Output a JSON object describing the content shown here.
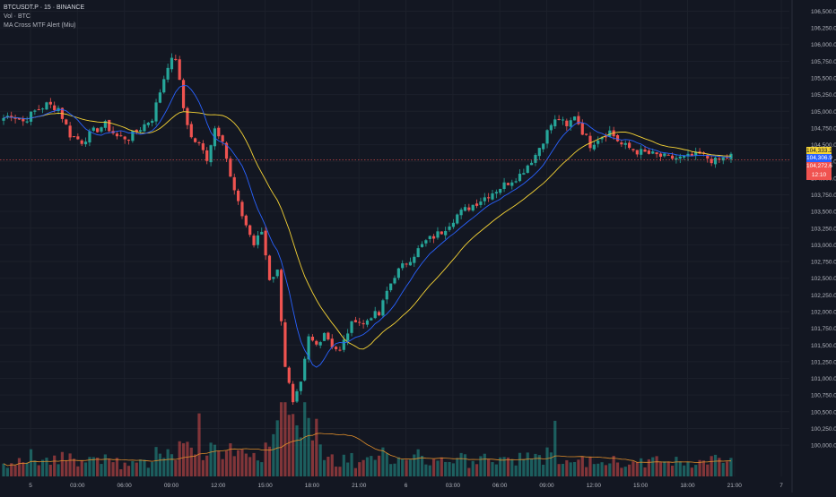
{
  "legend": {
    "symbol": "BTCUSDT.P · 15 · BINANCE",
    "volume": "Vol · BTC",
    "indicator": "MA Cross MTF Alert (Miu)"
  },
  "price_tags": [
    {
      "label": "104,333.2",
      "color": "#f5d335",
      "text_color": "#131722"
    },
    {
      "label": "104,306.9",
      "color": "#2962ff",
      "text_color": "#ffffff"
    },
    {
      "label": "104,272.6",
      "color": "#f05350",
      "text_color": "#ffffff"
    },
    {
      "label": "12:10",
      "color": "#f05350",
      "text_color": "#ffffff"
    }
  ],
  "colors": {
    "up": "#26a69a",
    "down": "#ef5350",
    "ma_fast": "#2962ff",
    "ma_slow": "#f5d335",
    "vol_ma": "#e08e2b",
    "grid": "#1c202b",
    "axis_text": "#b2b5be"
  },
  "chart_data": {
    "type": "candlestick",
    "symbol": "BTCUSDT.P",
    "interval": "15",
    "exchange": "BINANCE",
    "y_axis_ticks": [
      "106,500.0",
      "106,250.0",
      "106,000.0",
      "105,750.0",
      "105,500.0",
      "105,250.0",
      "105,000.0",
      "104,750.0",
      "104,500.0",
      "104,250.0",
      "104,000.0",
      "103,750.0",
      "103,500.0",
      "103,250.0",
      "103,000.0",
      "102,750.0",
      "102,500.0",
      "102,250.0",
      "102,000.0",
      "101,750.0",
      "101,500.0",
      "101,250.0",
      "101,000.0",
      "100,750.0",
      "100,500.0",
      "100,250.0",
      "100,000.0"
    ],
    "ylim": [
      99800,
      106600
    ],
    "x_axis_ticks": [
      "5",
      "03:00",
      "06:00",
      "09:00",
      "12:00",
      "15:00",
      "18:00",
      "21:00",
      "6",
      "03:00",
      "06:00",
      "09:00",
      "12:00",
      "15:00",
      "18:00",
      "21:00",
      "7"
    ],
    "x_tick_bars": [
      0,
      12,
      24,
      36,
      48,
      60,
      72,
      84,
      96,
      108,
      120,
      132,
      144,
      156,
      168,
      180,
      192
    ],
    "waypoints": [
      [
        0,
        104900
      ],
      [
        2,
        104950
      ],
      [
        5,
        104850
      ],
      [
        8,
        105000
      ],
      [
        11,
        105100
      ],
      [
        14,
        105050
      ],
      [
        17,
        104650
      ],
      [
        20,
        104550
      ],
      [
        23,
        104700
      ],
      [
        26,
        104800
      ],
      [
        29,
        104620
      ],
      [
        32,
        104600
      ],
      [
        35,
        104750
      ],
      [
        38,
        104900
      ],
      [
        40,
        105300
      ],
      [
        42,
        105700
      ],
      [
        44,
        105800
      ],
      [
        46,
        105050
      ],
      [
        48,
        104600
      ],
      [
        50,
        104500
      ],
      [
        52,
        104300
      ],
      [
        54,
        104750
      ],
      [
        56,
        104600
      ],
      [
        58,
        104000
      ],
      [
        60,
        103600
      ],
      [
        62,
        103300
      ],
      [
        64,
        103000
      ],
      [
        66,
        103200
      ],
      [
        68,
        102500
      ],
      [
        70,
        102600
      ],
      [
        72,
        101200
      ],
      [
        74,
        100600
      ],
      [
        76,
        100900
      ],
      [
        78,
        101600
      ],
      [
        80,
        101500
      ],
      [
        82,
        101700
      ],
      [
        84,
        101500
      ],
      [
        86,
        101400
      ],
      [
        88,
        101700
      ],
      [
        90,
        101900
      ],
      [
        92,
        101800
      ],
      [
        94,
        101950
      ],
      [
        96,
        101950
      ],
      [
        98,
        102300
      ],
      [
        100,
        102550
      ],
      [
        104,
        102800
      ],
      [
        108,
        103050
      ],
      [
        112,
        103200
      ],
      [
        116,
        103450
      ],
      [
        120,
        103600
      ],
      [
        124,
        103750
      ],
      [
        128,
        103900
      ],
      [
        132,
        104050
      ],
      [
        136,
        104350
      ],
      [
        140,
        104800
      ],
      [
        142,
        104900
      ],
      [
        144,
        104750
      ],
      [
        146,
        104950
      ],
      [
        148,
        104700
      ],
      [
        150,
        104500
      ],
      [
        152,
        104600
      ],
      [
        155,
        104700
      ],
      [
        158,
        104500
      ],
      [
        162,
        104400
      ],
      [
        166,
        104350
      ],
      [
        170,
        104300
      ],
      [
        174,
        104300
      ],
      [
        178,
        104350
      ],
      [
        182,
        104250
      ],
      [
        186,
        104333
      ]
    ],
    "volume_ylim": [
      0,
      1
    ],
    "last_price": 104272.6,
    "ma_fast_last": 104306.9,
    "ma_slow_last": 104333.2,
    "countdown": "12:10"
  }
}
